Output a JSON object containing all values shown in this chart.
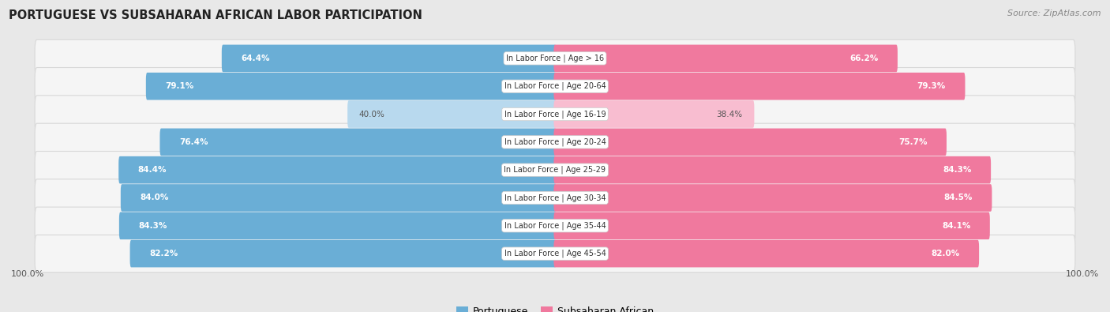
{
  "title": "PORTUGUESE VS SUBSAHARAN AFRICAN LABOR PARTICIPATION",
  "source": "Source: ZipAtlas.com",
  "categories": [
    "In Labor Force | Age > 16",
    "In Labor Force | Age 20-64",
    "In Labor Force | Age 16-19",
    "In Labor Force | Age 20-24",
    "In Labor Force | Age 25-29",
    "In Labor Force | Age 30-34",
    "In Labor Force | Age 35-44",
    "In Labor Force | Age 45-54"
  ],
  "portuguese_values": [
    64.4,
    79.1,
    40.0,
    76.4,
    84.4,
    84.0,
    84.3,
    82.2
  ],
  "subsaharan_values": [
    66.2,
    79.3,
    38.4,
    75.7,
    84.3,
    84.5,
    84.1,
    82.0
  ],
  "portuguese_color": "#6aaed6",
  "portuguese_light_color": "#b8d9ee",
  "subsaharan_color": "#f0799e",
  "subsaharan_light_color": "#f8bdd0",
  "background_color": "#e8e8e8",
  "row_bg_color": "#f5f5f5",
  "row_border_color": "#d8d8d8",
  "max_value": 100.0,
  "legend_portuguese": "Portuguese",
  "legend_subsaharan": "Subsaharan African"
}
